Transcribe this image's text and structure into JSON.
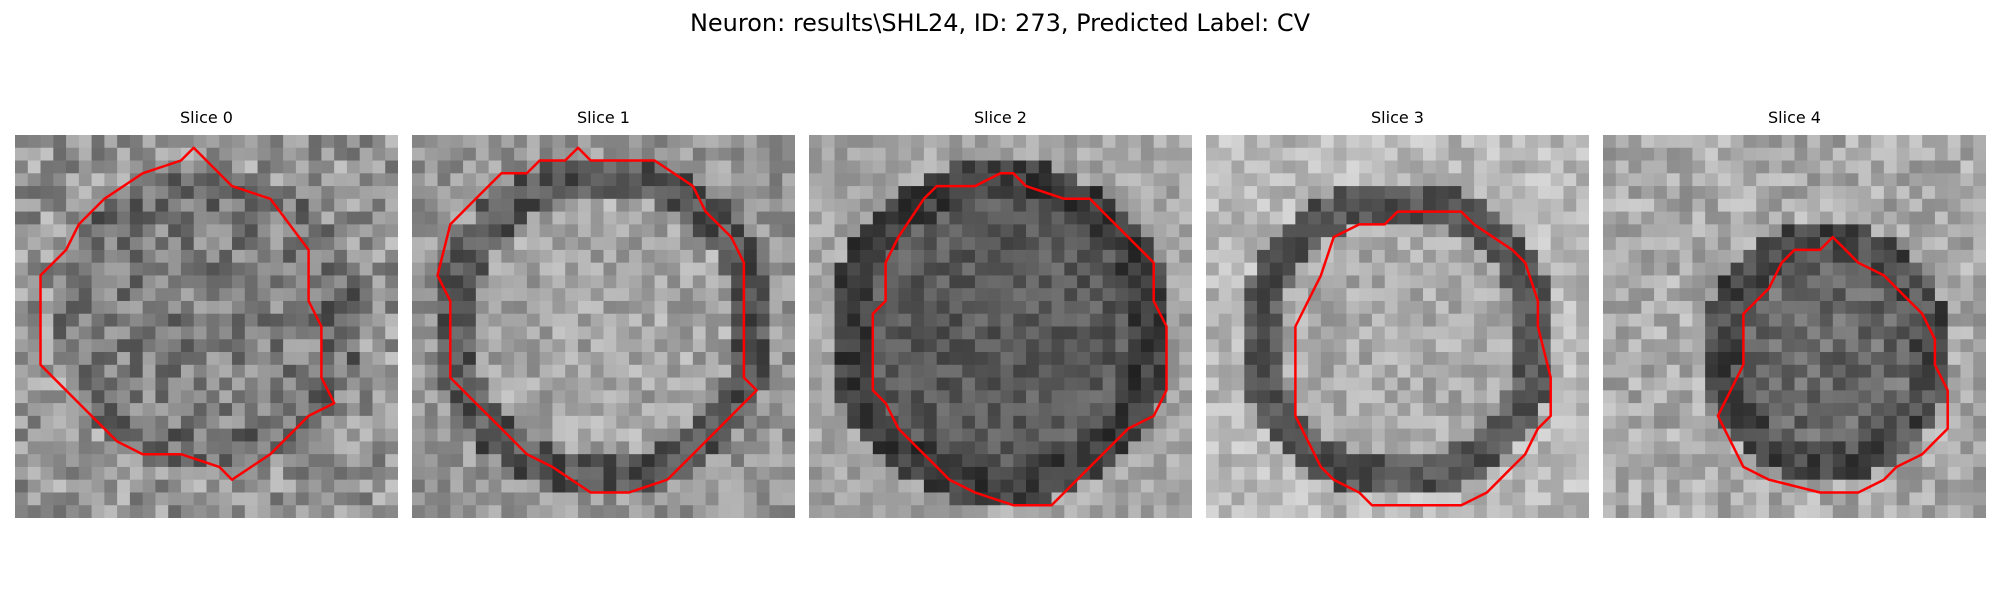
{
  "figure": {
    "title": "Neuron: results\\SHL24, ID: 273, Predicted Label: CV"
  },
  "slices": [
    {
      "label": "Slice 0"
    },
    {
      "label": "Slice 1"
    },
    {
      "label": "Slice 2"
    },
    {
      "label": "Slice 3"
    },
    {
      "label": "Slice 4"
    }
  ],
  "colors": {
    "contour": "#ff0000",
    "background": "#ffffff"
  }
}
